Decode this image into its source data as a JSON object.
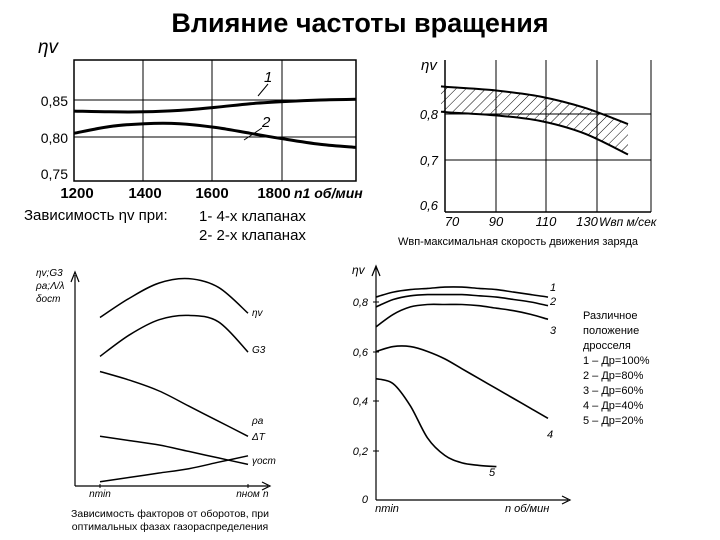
{
  "page": {
    "title": "Влияние частоты вращения"
  },
  "chart1": {
    "ylabel": "ηv",
    "xlabel": "n1 об/мин",
    "yticks": [
      "0,85",
      "0,80",
      "0,75"
    ],
    "xticks": [
      "1200",
      "1400",
      "1600",
      "1800"
    ],
    "curve_labels": [
      "1",
      "2"
    ],
    "caption_prefix": "Зависимость ηv при:",
    "options": [
      "1- 4-х клапанах",
      "2- 2-х клапанах"
    ]
  },
  "chart2": {
    "ylabel": "ηv",
    "xlabel": "Wвп м/сек",
    "yticks": [
      "0,8",
      "0,7",
      "0,6"
    ],
    "xticks": [
      "70",
      "90",
      "110",
      "130"
    ],
    "caption": "Wвп-максимальная скорость движения заряда"
  },
  "chart3": {
    "ylabel_lines": [
      "ηv;G3",
      "ρa;Λ/λ",
      "δост"
    ],
    "xticks": [
      "nmin",
      "nном"
    ],
    "xaxis_end": "n",
    "curve_labels": [
      "ηv",
      "G3",
      "ρa",
      "ΔT",
      "γост"
    ],
    "caption_lines": [
      "Зависимость факторов от оборотов, при",
      "оптимальных фазах газораспределения"
    ]
  },
  "chart4": {
    "ylabel": "ηv",
    "yticks": [
      "0,8",
      "0,6",
      "0,4",
      "0,2",
      "0"
    ],
    "xtick": "nmin",
    "xlabel": "n об/мин",
    "curve_labels": [
      "1",
      "2",
      "3",
      "4",
      "5"
    ]
  },
  "legend": {
    "lines": [
      "Различное",
      "положение",
      "дросселя",
      "1 – Др=100%",
      "2 – Др=80%",
      "3 – Др=60%",
      "4 – Др=40%",
      "5 – Др=20%"
    ]
  },
  "chart_data": [
    {
      "type": "line",
      "title": "",
      "xlabel": "n1 об/мин",
      "ylabel": "ηv",
      "xlim": [
        1200,
        2000
      ],
      "ylim": [
        0.75,
        0.87
      ],
      "x": [
        1200,
        1300,
        1400,
        1500,
        1600,
        1700,
        1800,
        1900,
        2000
      ],
      "series": [
        {
          "name": "1",
          "values": [
            0.835,
            0.834,
            0.834,
            0.836,
            0.84,
            0.845,
            0.848,
            0.85,
            0.851
          ]
        },
        {
          "name": "2",
          "values": [
            0.805,
            0.814,
            0.818,
            0.818,
            0.813,
            0.805,
            0.797,
            0.79,
            0.786
          ]
        }
      ],
      "grid": true
    },
    {
      "type": "area",
      "title": "",
      "xlabel": "Wвп м/сек",
      "ylabel": "ηv",
      "xlim": [
        65,
        150
      ],
      "ylim": [
        0.6,
        0.86
      ],
      "x": [
        65,
        70,
        90,
        110,
        130,
        150
      ],
      "series": [
        {
          "name": "",
          "values": [
            0.86,
            0.858,
            0.851,
            0.838,
            0.814,
            0.778
          ]
        },
        {
          "name": "",
          "values": [
            0.805,
            0.803,
            0.797,
            0.785,
            0.758,
            0.712
          ]
        }
      ],
      "grid": true
    },
    {
      "type": "line",
      "title": "",
      "xlabel": "n",
      "ylabel": "ηv;G3 ρa;Λ/λ δост",
      "x": [
        0,
        0.2,
        0.4,
        0.6,
        0.8,
        1.0
      ],
      "series": [
        {
          "name": "ηv",
          "values": [
            0.78,
            0.87,
            0.94,
            0.96,
            0.92,
            0.8
          ]
        },
        {
          "name": "G3",
          "values": [
            0.6,
            0.7,
            0.77,
            0.79,
            0.76,
            0.62
          ]
        },
        {
          "name": "ρa",
          "values": [
            0.53,
            0.49,
            0.44,
            0.37,
            0.3,
            0.23
          ]
        },
        {
          "name": "ΔT",
          "values": [
            0.23,
            0.21,
            0.19,
            0.16,
            0.13,
            0.1
          ]
        },
        {
          "name": "γост",
          "values": [
            0.02,
            0.04,
            0.06,
            0.08,
            0.11,
            0.14
          ]
        }
      ],
      "grid": false
    },
    {
      "type": "line",
      "title": "",
      "xlabel": "n об/мин",
      "ylabel": "ηv",
      "xlim": [
        0,
        1
      ],
      "ylim": [
        0,
        0.9
      ],
      "x": [
        0,
        0.1,
        0.2,
        0.3,
        0.4,
        0.5,
        0.6,
        0.7,
        0.8,
        0.9,
        1.0
      ],
      "series": [
        {
          "name": "1",
          "values": [
            0.82,
            0.84,
            0.85,
            0.855,
            0.86,
            0.86,
            0.855,
            0.85,
            0.84,
            0.83,
            0.82
          ]
        },
        {
          "name": "2",
          "values": [
            0.78,
            0.81,
            0.825,
            0.83,
            0.83,
            0.83,
            0.825,
            0.82,
            0.81,
            0.8,
            0.785
          ]
        },
        {
          "name": "3",
          "values": [
            0.7,
            0.75,
            0.78,
            0.79,
            0.79,
            0.79,
            0.785,
            0.775,
            0.765,
            0.75,
            0.73
          ]
        },
        {
          "name": "4",
          "values": [
            0.6,
            0.62,
            0.62,
            0.6,
            0.57,
            0.53,
            0.49,
            0.45,
            0.41,
            0.37,
            0.33
          ]
        },
        {
          "name": "5",
          "values": [
            0.49,
            0.47,
            0.38,
            0.25,
            0.18,
            0.15,
            0.14,
            0.135,
            null,
            null,
            null
          ]
        }
      ],
      "grid": false
    }
  ]
}
